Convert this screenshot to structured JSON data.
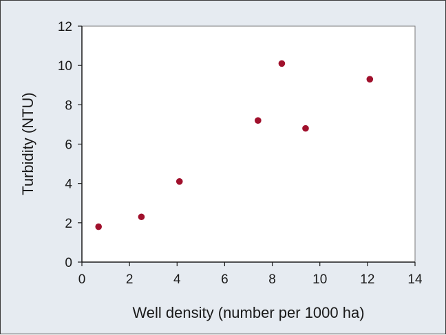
{
  "chart_data": {
    "type": "scatter",
    "title": "",
    "xlabel": "Well density (number per 1000 ha)",
    "ylabel": "Turbidity (NTU)",
    "xlim": [
      0,
      14
    ],
    "ylim": [
      0,
      12
    ],
    "xticks": [
      "0",
      "2",
      "4",
      "6",
      "8",
      "10",
      "12",
      "14"
    ],
    "yticks": [
      "0",
      "2",
      "4",
      "6",
      "8",
      "10",
      "12"
    ],
    "grid": false,
    "legend": "none",
    "marker_color": "#a0102c",
    "series": [
      {
        "points": [
          {
            "x": 0.7,
            "y": 1.8
          },
          {
            "x": 2.5,
            "y": 2.3
          },
          {
            "x": 4.1,
            "y": 4.1
          },
          {
            "x": 7.4,
            "y": 7.2
          },
          {
            "x": 8.4,
            "y": 10.1
          },
          {
            "x": 9.4,
            "y": 6.8
          },
          {
            "x": 12.1,
            "y": 9.3
          }
        ]
      }
    ]
  },
  "colors": {
    "figure_background": "#e6ebf1",
    "plot_background": "#ffffff",
    "axis": "#1a1a1a"
  }
}
